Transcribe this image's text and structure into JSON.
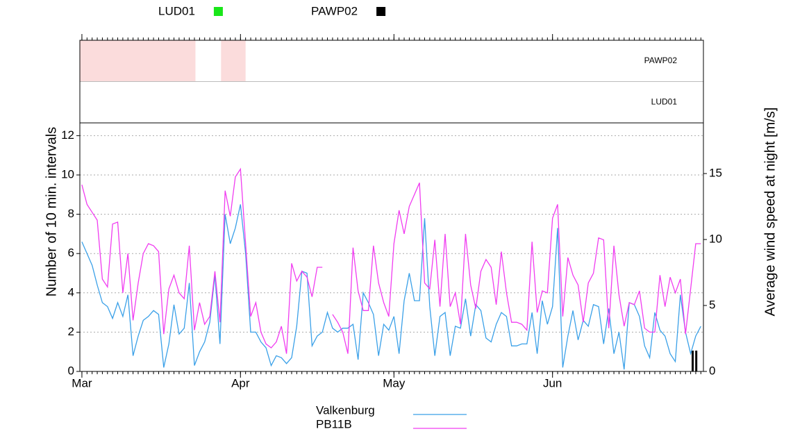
{
  "chart_data": {
    "type": "line",
    "y_label": "Number of 10 min. intervals",
    "y2_label": "Average wind speed at night [m/s]",
    "x": [
      1,
      2,
      3,
      4,
      5,
      6,
      7,
      8,
      9,
      10,
      11,
      12,
      13,
      14,
      15,
      16,
      17,
      18,
      19,
      20,
      21,
      22,
      23,
      24,
      25,
      26,
      27,
      28,
      29,
      30,
      31,
      32,
      33,
      34,
      35,
      36,
      37,
      38,
      39,
      40,
      41,
      42,
      43,
      44,
      45,
      46,
      47,
      48,
      49,
      50,
      51,
      52,
      53,
      54,
      55,
      56,
      57,
      58,
      59,
      60,
      61,
      62,
      63,
      64,
      65,
      66,
      67,
      68,
      69,
      70,
      71,
      72,
      73,
      74,
      75,
      76,
      77,
      78,
      79,
      80,
      81,
      82,
      83,
      84,
      85,
      86,
      87,
      88,
      89,
      90,
      91,
      92,
      93,
      94,
      95,
      96,
      97,
      98,
      99,
      100,
      101,
      102,
      103,
      104,
      105,
      106,
      107,
      108,
      109,
      110,
      111,
      112,
      113,
      114,
      115,
      116,
      117,
      118,
      119,
      120,
      121,
      122
    ],
    "series": [
      {
        "name": "Valkenburg",
        "color": "#3aa0e8",
        "values": [
          6.6,
          6.0,
          5.4,
          4.4,
          3.5,
          3.3,
          2.7,
          3.5,
          2.8,
          3.9,
          0.8,
          1.8,
          2.6,
          2.8,
          3.1,
          2.9,
          0.2,
          1.4,
          3.4,
          1.9,
          2.2,
          4.5,
          0.3,
          1.0,
          1.5,
          2.5,
          4.9,
          1.4,
          8.0,
          6.5,
          7.3,
          8.5,
          6.0,
          2.0,
          2.0,
          1.5,
          1.2,
          0.3,
          0.8,
          0.7,
          0.4,
          0.7,
          2.3,
          5.1,
          5.0,
          1.3,
          1.8,
          2.0,
          3.0,
          2.2,
          2.0,
          2.2,
          2.2,
          2.4,
          0.6,
          4.0,
          3.5,
          2.9,
          0.8,
          2.4,
          2.1,
          2.8,
          0.9,
          3.6,
          5.0,
          3.6,
          3.6,
          7.8,
          3.3,
          0.8,
          2.8,
          3.0,
          0.8,
          2.3,
          2.2,
          3.7,
          1.8,
          3.4,
          3.1,
          1.7,
          1.5,
          2.4,
          3.0,
          2.8,
          1.3,
          1.3,
          1.4,
          1.4,
          3.0,
          0.9,
          3.6,
          2.4,
          3.3,
          7.3,
          0.2,
          1.8,
          3.1,
          1.6,
          2.6,
          2.3,
          3.4,
          3.3,
          1.4,
          3.2,
          0.9,
          2.0,
          0.1,
          3.5,
          3.4,
          2.8,
          1.3,
          0.7,
          3.0,
          2.1,
          1.8,
          0.9,
          0.5,
          3.9,
          2.0,
          0.9,
          1.8,
          2.3
        ]
      },
      {
        "name": "PB11B",
        "color": "#f03cf0",
        "values": [
          9.5,
          8.5,
          8.1,
          7.7,
          4.7,
          4.3,
          7.5,
          7.6,
          4.0,
          6.0,
          2.6,
          4.5,
          6.0,
          6.5,
          6.4,
          6.1,
          1.9,
          4.2,
          4.9,
          4.0,
          3.7,
          6.4,
          2.1,
          3.5,
          2.4,
          2.8,
          5.1,
          2.5,
          9.2,
          7.9,
          9.9,
          10.3,
          6.5,
          2.8,
          3.5,
          2.0,
          1.4,
          1.2,
          1.5,
          2.3,
          0.9,
          5.5,
          4.6,
          5.1,
          4.8,
          3.8,
          5.3,
          5.3,
          null,
          2.9,
          2.5,
          2.0,
          0.9,
          6.3,
          4.1,
          3.1,
          3.1,
          6.4,
          4.5,
          3.5,
          2.8,
          6.5,
          8.2,
          7.0,
          8.4,
          9.0,
          9.6,
          4.5,
          4.2,
          6.7,
          3.3,
          7.0,
          3.3,
          4.0,
          2.4,
          7.0,
          4.4,
          3.2,
          5.1,
          5.7,
          5.3,
          3.4,
          6.1,
          4.0,
          2.5,
          2.5,
          2.4,
          2.1,
          6.6,
          3.0,
          4.1,
          4.0,
          7.8,
          8.5,
          2.8,
          5.8,
          4.9,
          4.4,
          2.5,
          4.5,
          5.0,
          6.8,
          6.7,
          2.2,
          6.4,
          3.9,
          2.3,
          3.5,
          3.4,
          4.1,
          2.2,
          2.0,
          2.0,
          4.9,
          3.3,
          4.8,
          4.0,
          4.7,
          1.9,
          4.2,
          6.5,
          6.5
        ]
      }
    ],
    "xlim": [
      0.6,
      122.5
    ],
    "xticks": [
      {
        "value": 1,
        "label": "Mar"
      },
      {
        "value": 32,
        "label": "Apr"
      },
      {
        "value": 62,
        "label": "May"
      },
      {
        "value": 93,
        "label": "Jun"
      }
    ],
    "ylim": [
      0,
      12.65
    ],
    "yticks": [
      0,
      2,
      4,
      6,
      8,
      10,
      12
    ],
    "y2lim": [
      0,
      18.84
    ],
    "y2ticks": [
      0,
      5,
      10,
      15
    ],
    "grid": true,
    "panels": [
      {
        "name": "PAWP02",
        "color": "#000000",
        "shade_color": "#fbdcdc",
        "shaded": [
          [
            0.6,
            23.2
          ],
          [
            28.2,
            33.0
          ]
        ],
        "events": [
          120.4,
          121.1
        ]
      },
      {
        "name": "LUD01",
        "color": "#19e619",
        "shade_color": "#fbdcdc",
        "shaded": [],
        "events": []
      }
    ]
  }
}
